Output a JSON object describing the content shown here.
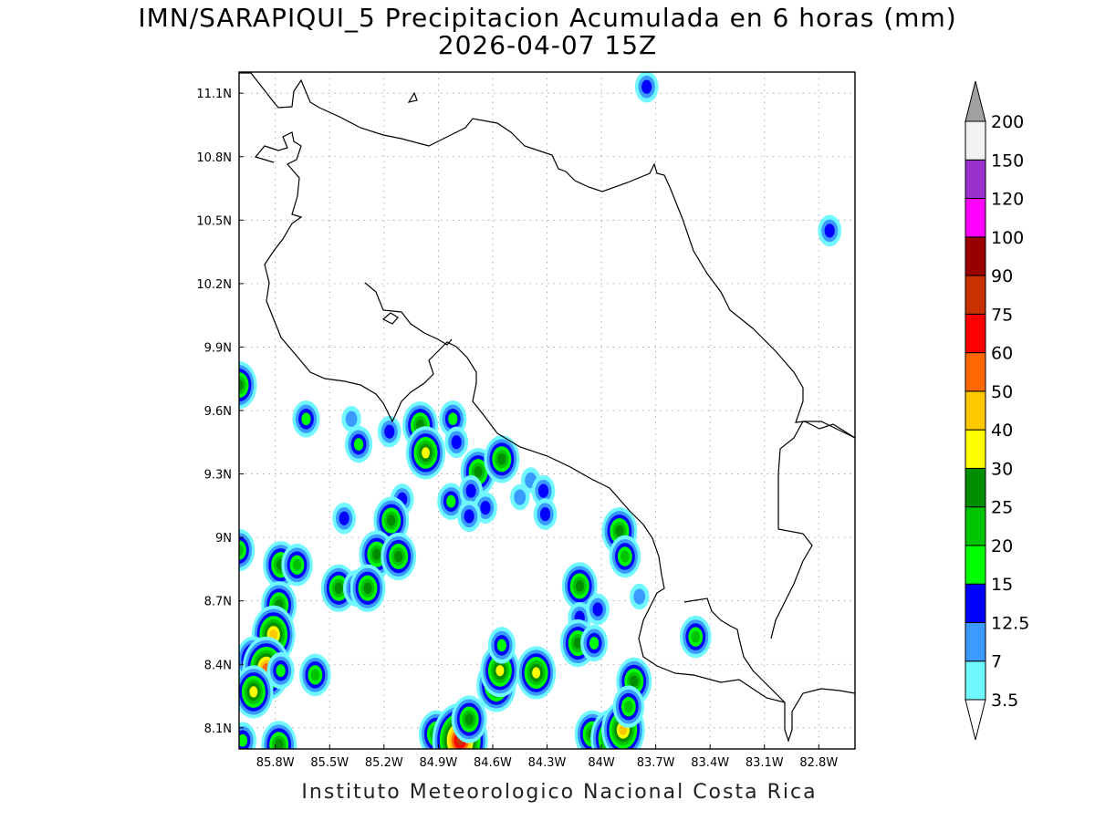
{
  "title": {
    "line1": "IMN/SARAPIQUI_5 Precipitacion Acumulada en 6 horas (mm)",
    "line2": "2026-04-07 15Z"
  },
  "footer": "Instituto Meteorologico Nacional Costa Rica",
  "map": {
    "lon_range": [
      -86.0,
      -82.6
    ],
    "lat_range": [
      8.0,
      11.2
    ],
    "lat_ticks": [
      {
        "value": 8.1,
        "label": "8.1N"
      },
      {
        "value": 8.4,
        "label": "8.4N"
      },
      {
        "value": 8.7,
        "label": "8.7N"
      },
      {
        "value": 9.0,
        "label": "9N"
      },
      {
        "value": 9.3,
        "label": "9.3N"
      },
      {
        "value": 9.6,
        "label": "9.6N"
      },
      {
        "value": 9.9,
        "label": "9.9N"
      },
      {
        "value": 10.2,
        "label": "10.2N"
      },
      {
        "value": 10.5,
        "label": "10.5N"
      },
      {
        "value": 10.8,
        "label": "10.8N"
      },
      {
        "value": 11.1,
        "label": "11.1N"
      }
    ],
    "lon_ticks": [
      {
        "value": -85.8,
        "label": "85.8W"
      },
      {
        "value": -85.5,
        "label": "85.5W"
      },
      {
        "value": -85.2,
        "label": "85.2W"
      },
      {
        "value": -84.9,
        "label": "84.9W"
      },
      {
        "value": -84.6,
        "label": "84.6W"
      },
      {
        "value": -84.3,
        "label": "84.3W"
      },
      {
        "value": -84.0,
        "label": "84W"
      },
      {
        "value": -83.7,
        "label": "83.7W"
      },
      {
        "value": -83.4,
        "label": "83.4W"
      },
      {
        "value": -83.1,
        "label": "83.1W"
      },
      {
        "value": -82.8,
        "label": "82.8W"
      }
    ],
    "grid": true
  },
  "colorbar": {
    "levels": [
      {
        "label": "3.5",
        "color": "#ffffff"
      },
      {
        "label": "7",
        "color": "#6ff8ff"
      },
      {
        "label": "12.5",
        "color": "#3a9aff"
      },
      {
        "label": "15",
        "color": "#0000ff"
      },
      {
        "label": "20",
        "color": "#00ff00"
      },
      {
        "label": "25",
        "color": "#00c400"
      },
      {
        "label": "30",
        "color": "#008e00"
      },
      {
        "label": "40",
        "color": "#ffff00"
      },
      {
        "label": "50",
        "color": "#ffc800"
      },
      {
        "label": "60",
        "color": "#ff6800"
      },
      {
        "label": "75",
        "color": "#ff0000"
      },
      {
        "label": "90",
        "color": "#c83200"
      },
      {
        "label": "100",
        "color": "#990000"
      },
      {
        "label": "120",
        "color": "#ff00ff"
      },
      {
        "label": "150",
        "color": "#9932cc"
      },
      {
        "label": "200",
        "color": "#f2f2f2"
      }
    ],
    "overflow_color": "#a0a0a0"
  },
  "precip_cells": [
    {
      "lon": -85.63,
      "lat": 9.56,
      "max": 15
    },
    {
      "lon": -85.38,
      "lat": 9.56,
      "max": 7
    },
    {
      "lon": -85.17,
      "lat": 9.5,
      "max": 12.5
    },
    {
      "lon": -85.34,
      "lat": 9.44,
      "max": 15
    },
    {
      "lon": -85.42,
      "lat": 9.09,
      "max": 12.5
    },
    {
      "lon": -85.0,
      "lat": 9.53,
      "max": 25
    },
    {
      "lon": -84.82,
      "lat": 9.56,
      "max": 15
    },
    {
      "lon": -84.97,
      "lat": 9.4,
      "max": 30
    },
    {
      "lon": -84.8,
      "lat": 9.45,
      "max": 12.5
    },
    {
      "lon": -84.68,
      "lat": 9.31,
      "max": 25
    },
    {
      "lon": -84.55,
      "lat": 9.37,
      "max": 25
    },
    {
      "lon": -84.83,
      "lat": 9.17,
      "max": 15
    },
    {
      "lon": -84.72,
      "lat": 9.22,
      "max": 12.5
    },
    {
      "lon": -84.64,
      "lat": 9.14,
      "max": 12.5
    },
    {
      "lon": -84.39,
      "lat": 9.27,
      "max": 7
    },
    {
      "lon": -84.32,
      "lat": 9.22,
      "max": 12.5
    },
    {
      "lon": -84.31,
      "lat": 9.11,
      "max": 12.5
    },
    {
      "lon": -84.45,
      "lat": 9.19,
      "max": 7
    },
    {
      "lon": -85.1,
      "lat": 9.18,
      "max": 12.5
    },
    {
      "lon": -85.16,
      "lat": 9.08,
      "max": 25
    },
    {
      "lon": -84.73,
      "lat": 9.1,
      "max": 12.5
    },
    {
      "lon": -85.77,
      "lat": 8.87,
      "max": 25
    },
    {
      "lon": -85.68,
      "lat": 8.87,
      "max": 20
    },
    {
      "lon": -85.24,
      "lat": 8.92,
      "max": 25
    },
    {
      "lon": -85.12,
      "lat": 8.91,
      "max": 25
    },
    {
      "lon": -85.45,
      "lat": 8.76,
      "max": 25
    },
    {
      "lon": -85.35,
      "lat": 8.76,
      "max": 15
    },
    {
      "lon": -85.29,
      "lat": 8.76,
      "max": 25
    },
    {
      "lon": -85.78,
      "lat": 8.68,
      "max": 25
    },
    {
      "lon": -85.81,
      "lat": 8.54,
      "max": 40
    },
    {
      "lon": -85.92,
      "lat": 8.42,
      "max": 25
    },
    {
      "lon": -85.85,
      "lat": 8.38,
      "max": 50
    },
    {
      "lon": -85.92,
      "lat": 8.27,
      "max": 30
    },
    {
      "lon": -85.98,
      "lat": 8.04,
      "max": 15
    },
    {
      "lon": -85.78,
      "lat": 8.02,
      "max": 25
    },
    {
      "lon": -85.58,
      "lat": 8.35,
      "max": 20
    },
    {
      "lon": -85.77,
      "lat": 8.37,
      "max": 15
    },
    {
      "lon": -84.91,
      "lat": 8.07,
      "max": 25
    },
    {
      "lon": -84.78,
      "lat": 8.04,
      "max": 75
    },
    {
      "lon": -84.73,
      "lat": 8.14,
      "max": 25
    },
    {
      "lon": -84.58,
      "lat": 8.3,
      "max": 30
    },
    {
      "lon": -84.56,
      "lat": 8.37,
      "max": 30
    },
    {
      "lon": -84.55,
      "lat": 8.49,
      "max": 15
    },
    {
      "lon": -84.36,
      "lat": 8.36,
      "max": 30
    },
    {
      "lon": -84.12,
      "lat": 8.77,
      "max": 25
    },
    {
      "lon": -84.12,
      "lat": 8.62,
      "max": 12.5
    },
    {
      "lon": -84.13,
      "lat": 8.5,
      "max": 25
    },
    {
      "lon": -84.04,
      "lat": 8.5,
      "max": 15
    },
    {
      "lon": -84.05,
      "lat": 8.07,
      "max": 25
    },
    {
      "lon": -83.94,
      "lat": 8.05,
      "max": 40
    },
    {
      "lon": -83.88,
      "lat": 8.09,
      "max": 40
    },
    {
      "lon": -83.82,
      "lat": 8.32,
      "max": 25
    },
    {
      "lon": -83.85,
      "lat": 8.2,
      "max": 20
    },
    {
      "lon": -83.9,
      "lat": 9.03,
      "max": 25
    },
    {
      "lon": -83.87,
      "lat": 8.91,
      "max": 20
    },
    {
      "lon": -83.48,
      "lat": 8.53,
      "max": 20
    },
    {
      "lon": -84.02,
      "lat": 8.66,
      "max": 12.5
    },
    {
      "lon": -83.79,
      "lat": 8.72,
      "max": 7
    },
    {
      "lon": -86.0,
      "lat": 9.72,
      "max": 25
    },
    {
      "lon": -86.0,
      "lat": 8.94,
      "max": 20
    },
    {
      "lon": -83.75,
      "lat": 11.13,
      "max": 12.5
    },
    {
      "lon": -82.74,
      "lat": 10.45,
      "max": 12.5
    }
  ]
}
